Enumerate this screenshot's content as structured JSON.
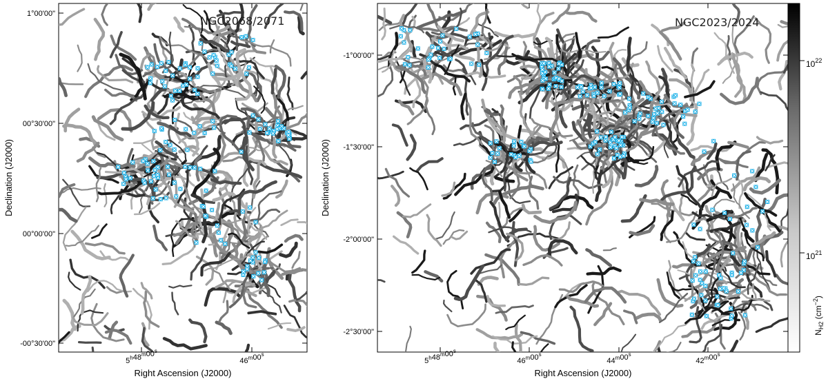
{
  "figure": {
    "panels": [
      {
        "id": "left",
        "label": "NGC2068/2071",
        "xlabel": "Right Ascension (J2000)",
        "ylabel": "Declination (J2000)",
        "x_ticks": [
          "5h48m00s",
          "46m00s"
        ],
        "y_ticks": [
          "1°00'00\"",
          "00°30'00\"",
          "00°00'00\"",
          "-00°30'00\""
        ]
      },
      {
        "id": "right",
        "label": "NGC2023/2024",
        "xlabel": "Right Ascension (J2000)",
        "ylabel": "Declination (J2000)",
        "x_ticks": [
          "5h48m00s",
          "46m00s",
          "44m00s",
          "42m00s"
        ],
        "y_ticks": [
          "-1°00'00\"",
          "-1°30'00\"",
          "-2°00'00\"",
          "-2°30'00\""
        ]
      }
    ],
    "colorbar": {
      "label": "N_H2 (cm^-2)",
      "ticks": [
        "10^22",
        "10^21"
      ],
      "colormap": "white-to-black (grayscale)"
    },
    "colors": {
      "filament_dark": "#1a1a1a",
      "filament_mid": "#555555",
      "filament_light": "#9a9a9a",
      "source_marker": "#1ab0e8"
    }
  }
}
